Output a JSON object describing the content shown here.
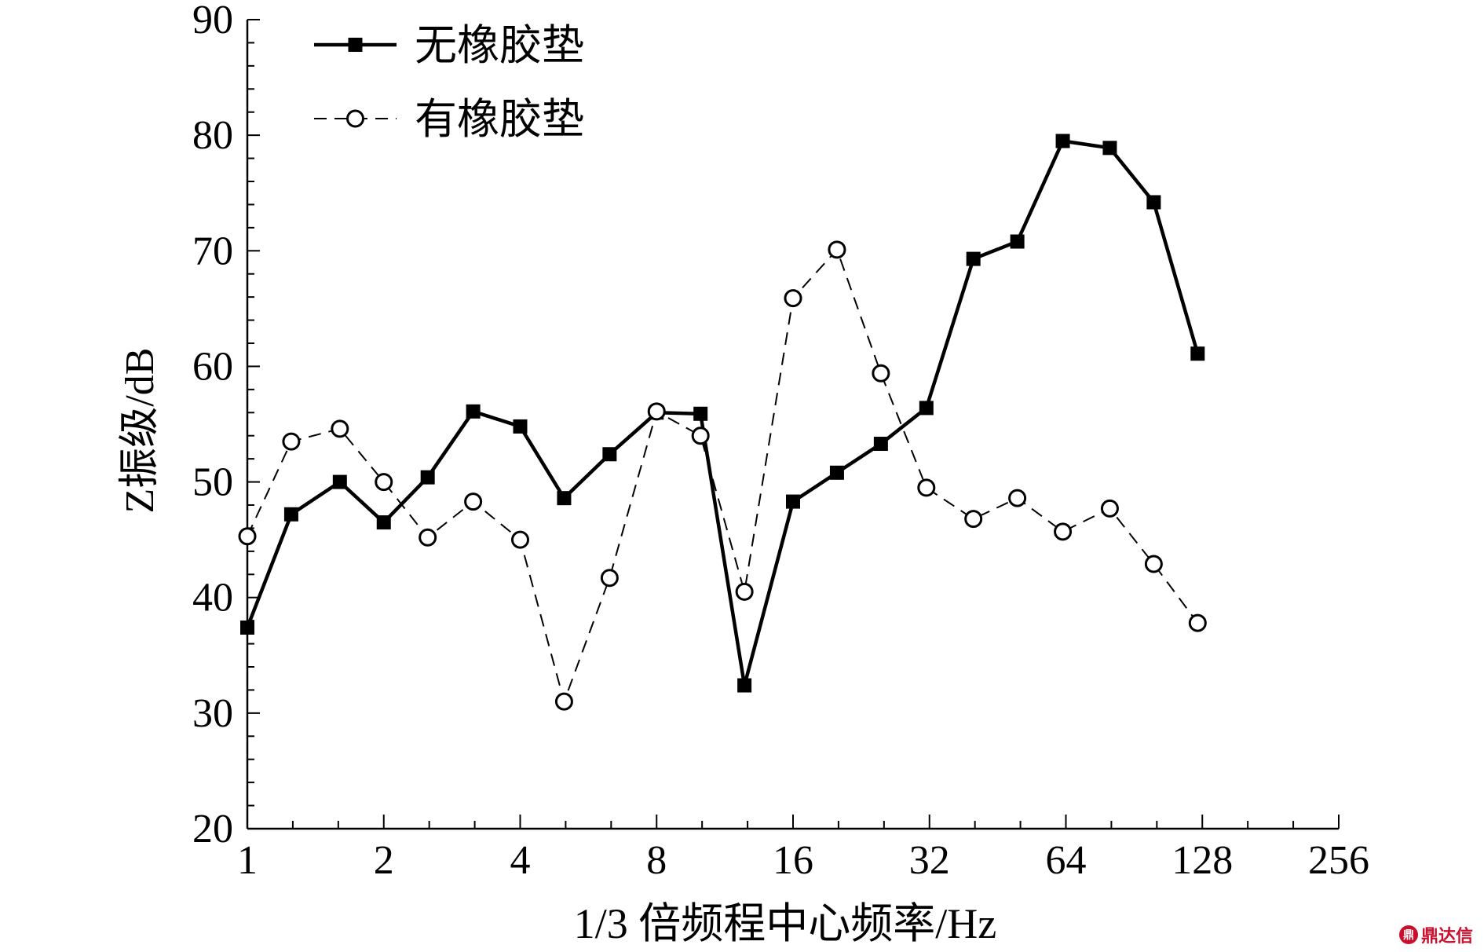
{
  "chart_data": {
    "type": "line",
    "title": "",
    "xlabel": "1/3 倍频程中心频率/Hz",
    "ylabel": "Z振级/dB",
    "x_scale": "log2",
    "xlim": [
      1,
      256
    ],
    "ylim": [
      20,
      90
    ],
    "x_ticks": [
      1,
      2,
      4,
      8,
      16,
      32,
      64,
      128,
      256
    ],
    "y_ticks": [
      20,
      30,
      40,
      50,
      60,
      70,
      80,
      90
    ],
    "x": [
      1,
      1.25,
      1.6,
      2,
      2.5,
      3.15,
      4,
      5,
      6.3,
      8,
      10,
      12.5,
      16,
      20,
      25,
      31.5,
      40,
      50,
      63,
      80,
      100,
      125
    ],
    "series": [
      {
        "name": "无橡胶垫",
        "style": "solid",
        "marker": "filled-square",
        "values": [
          37.4,
          47.2,
          50.0,
          46.5,
          50.4,
          56.1,
          54.8,
          48.6,
          52.4,
          56.0,
          55.9,
          32.4,
          48.3,
          50.8,
          53.3,
          56.4,
          69.3,
          70.8,
          79.5,
          78.9,
          74.2,
          61.1
        ]
      },
      {
        "name": "有橡胶垫",
        "style": "dashed",
        "marker": "open-circle",
        "values": [
          45.3,
          53.5,
          54.6,
          50.0,
          45.2,
          48.3,
          45.0,
          31.0,
          41.7,
          56.1,
          54.0,
          40.5,
          65.9,
          70.1,
          59.4,
          49.5,
          46.8,
          48.6,
          45.7,
          47.7,
          42.9,
          37.8
        ]
      }
    ],
    "legend_position": "top-left",
    "grid": false
  },
  "watermark": {
    "logo_char": "鼎",
    "text": "鼎达信"
  }
}
